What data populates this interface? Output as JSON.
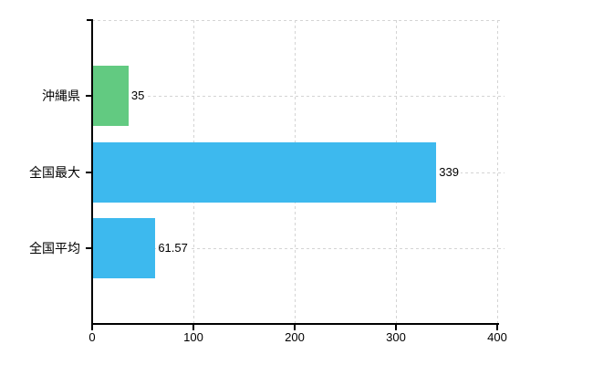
{
  "chart_data": {
    "type": "bar",
    "orientation": "horizontal",
    "title": "",
    "categories": [
      "沖縄県",
      "全国最大",
      "全国平均"
    ],
    "values": [
      35,
      339,
      61.57
    ],
    "value_labels": [
      "35",
      "339",
      "61.57"
    ],
    "bar_colors": [
      "#62ca81",
      "#3db9ee",
      "#3db9ee"
    ],
    "x_ticks": [
      "0",
      "100",
      "200",
      "300",
      "400"
    ],
    "x_tick_values": [
      0,
      100,
      200,
      300,
      400
    ],
    "xlim": [
      0,
      400
    ],
    "grid": {
      "vertical_at_x_ticks": true,
      "horizontal_at_category_centers": true,
      "top_border": true,
      "style": "dashed"
    },
    "legend": "none"
  },
  "colors": {
    "background": "#ffffff",
    "axis": "#000000",
    "gridline": "#d4d4d4",
    "text": "#000000",
    "green_bar": "#62ca81",
    "blue_bar": "#3db9ee"
  }
}
